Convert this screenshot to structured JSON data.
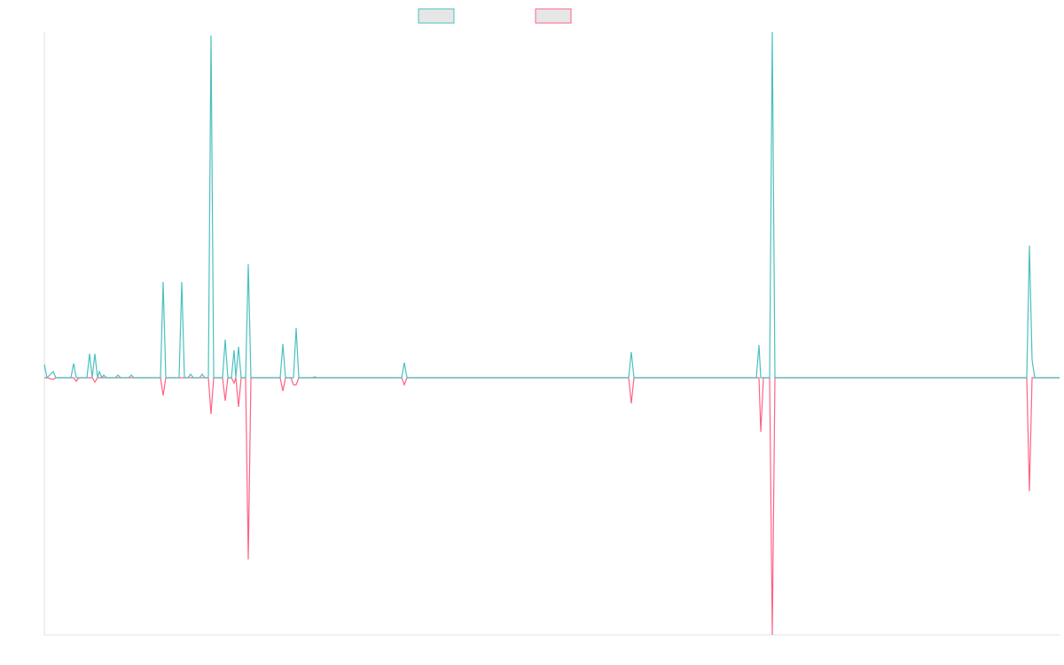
{
  "chart_data": {
    "type": "line",
    "x": [
      0,
      3,
      10,
      13,
      30,
      33,
      36,
      39,
      48,
      51,
      54,
      57,
      60,
      62,
      65,
      67,
      70,
      80,
      83,
      86,
      95,
      98,
      101,
      131,
      134,
      137,
      152,
      155,
      158,
      162,
      165,
      168,
      175,
      178,
      181,
      185,
      188,
      191,
      201,
      204,
      207,
      211,
      214,
      216,
      219,
      222,
      227,
      230,
      233,
      266,
      269,
      272,
      278,
      281,
      284,
      287,
      302,
      305,
      308,
      403,
      406,
      409,
      659,
      662,
      665,
      803,
      806,
      808,
      811,
      818,
      821,
      824,
      1108,
      1111,
      1114,
      1117,
      1145
    ],
    "xlim": [
      0,
      1145
    ],
    "ylim": [
      -290,
      390
    ],
    "series": [
      {
        "color": "#4bc0c0",
        "values": [
          15,
          0,
          7,
          0,
          0,
          16,
          0,
          0,
          0,
          27,
          0,
          27,
          0,
          7,
          0,
          3,
          0,
          0,
          3,
          0,
          0,
          3,
          0,
          0,
          108,
          0,
          0,
          108,
          0,
          0,
          4,
          0,
          0,
          4,
          0,
          0,
          386,
          0,
          0,
          43,
          0,
          0,
          31,
          0,
          35,
          0,
          0,
          128,
          0,
          0,
          38,
          0,
          0,
          0,
          56,
          0,
          0,
          1,
          0,
          0,
          17,
          0,
          0,
          29,
          0,
          0,
          37,
          0,
          0,
          0,
          390,
          0,
          0,
          149,
          20,
          0,
          0
        ]
      },
      {
        "color": "#ff6384",
        "values": [
          0,
          0,
          -2,
          0,
          0,
          0,
          -4,
          0,
          0,
          0,
          0,
          -5,
          0,
          0,
          0,
          0,
          0,
          0,
          0,
          0,
          0,
          0,
          0,
          0,
          -20,
          0,
          0,
          0,
          0,
          0,
          0,
          0,
          0,
          0,
          0,
          0,
          -41,
          0,
          0,
          -26,
          0,
          0,
          -6,
          0,
          -33,
          0,
          0,
          -205,
          0,
          0,
          -15,
          0,
          0,
          -8,
          -8,
          0,
          0,
          0,
          0,
          0,
          -8,
          0,
          0,
          -29,
          0,
          0,
          0,
          -61,
          0,
          0,
          -290,
          0,
          0,
          -128,
          0,
          0,
          0
        ]
      }
    ]
  }
}
